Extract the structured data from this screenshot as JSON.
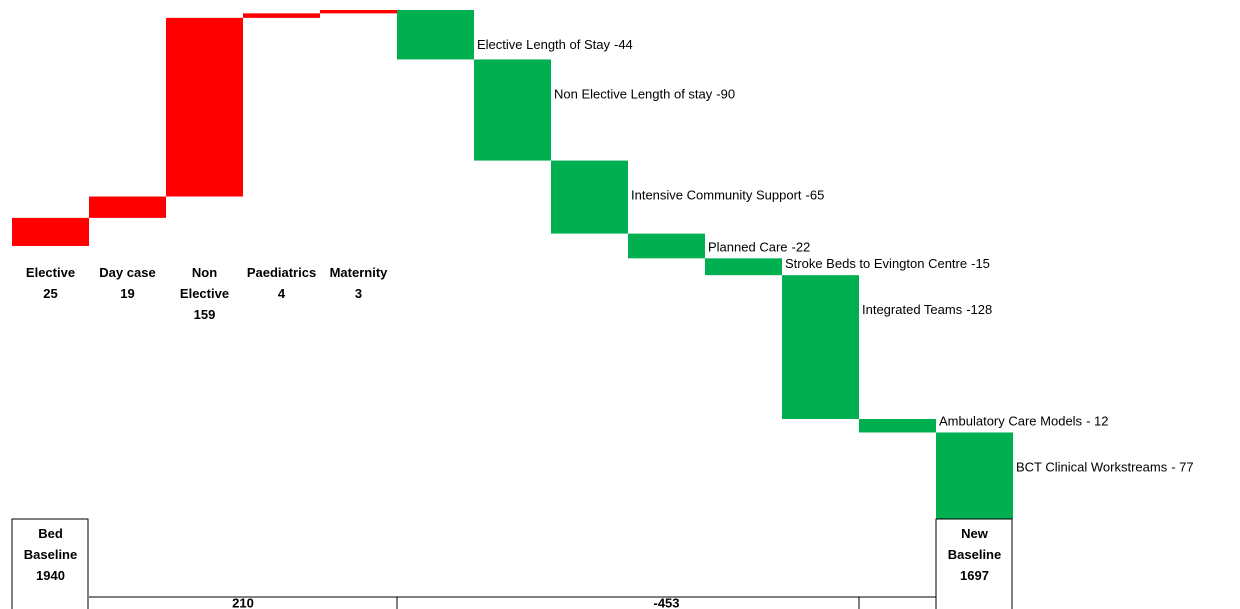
{
  "chart_data": {
    "type": "waterfall",
    "start": {
      "label": "Bed Baseline",
      "value": 1940
    },
    "end": {
      "label": "New Baseline",
      "value": 1697
    },
    "categories": [
      "Elective",
      "Day case",
      "Non Elective",
      "Paediatrics",
      "Maternity",
      "Elective Length of Stay",
      "Non Elective Length of stay",
      "Intensive Community Support",
      "Planned Care",
      "Stroke Beds to Evington Centre",
      "Integrated Teams",
      "Ambulatory Care Models",
      "BCT Clinical Workstreams"
    ],
    "values": [
      25,
      19,
      159,
      4,
      3,
      -44,
      -90,
      -65,
      -22,
      -15,
      -128,
      -12,
      -77
    ],
    "value_labels": [
      "25",
      "19",
      "159",
      "4",
      "3",
      "-44",
      "-90",
      "-65",
      "-22",
      "-15",
      "-128",
      "- 12",
      "- 77"
    ],
    "group_totals": [
      210,
      -453
    ],
    "increase_color": "#ff0000",
    "decrease_color": "#00b050"
  }
}
